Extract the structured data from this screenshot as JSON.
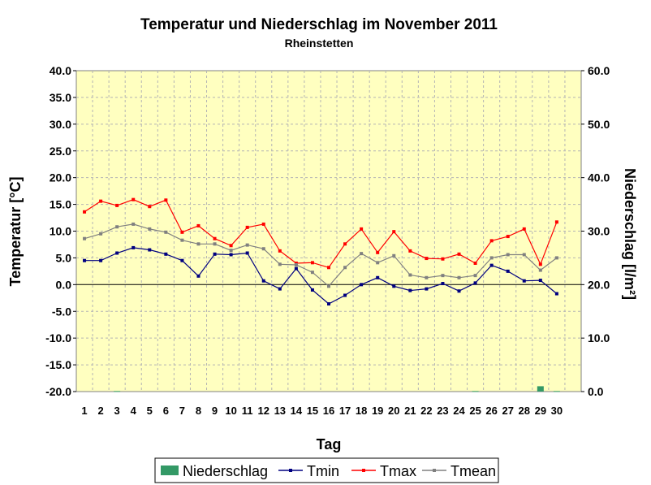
{
  "chart_data": {
    "type": "line",
    "title": "Temperatur und Niederschlag im November 2011",
    "subtitle": "Rheinstetten",
    "xlabel": "Tag",
    "ylabel": "Temperatur [°C]",
    "y2label": "Niederschlag [l/m²]",
    "x": [
      1,
      2,
      3,
      4,
      5,
      6,
      7,
      8,
      9,
      10,
      11,
      12,
      13,
      14,
      15,
      16,
      17,
      18,
      19,
      20,
      21,
      22,
      23,
      24,
      25,
      26,
      27,
      28,
      29,
      30
    ],
    "x_slots": 31,
    "ylim": [
      -20,
      40
    ],
    "yticks": [
      -20,
      -15,
      -10,
      -5,
      0,
      5,
      10,
      15,
      20,
      25,
      30,
      35,
      40
    ],
    "y2lim": [
      0,
      60
    ],
    "y2ticks": [
      0,
      10,
      20,
      30,
      40,
      50,
      60
    ],
    "grid": true,
    "plot_background": "#ffffc0",
    "legend_position": "bottom",
    "series": [
      {
        "name": "Niederschlag",
        "kind": "bar",
        "axis": "right",
        "color": "#339966",
        "values": [
          0,
          0,
          0.1,
          0,
          0,
          0,
          0,
          0,
          0,
          0,
          0,
          0,
          0,
          0,
          0,
          0,
          0,
          0,
          0,
          0,
          0,
          0,
          0,
          0,
          0.1,
          0,
          0,
          0,
          1.0,
          0.1
        ]
      },
      {
        "name": "Tmin",
        "kind": "line",
        "axis": "left",
        "color": "#000080",
        "values": [
          4.5,
          4.5,
          5.9,
          6.9,
          6.5,
          5.7,
          4.5,
          1.6,
          5.7,
          5.6,
          5.9,
          0.7,
          -0.8,
          3.0,
          -1.0,
          -3.6,
          -2.0,
          0.0,
          1.3,
          -0.3,
          -1.1,
          -0.8,
          0.2,
          -1.2,
          0.3,
          3.6,
          2.5,
          0.7,
          0.8,
          -1.7
        ]
      },
      {
        "name": "Tmax",
        "kind": "line",
        "axis": "left",
        "color": "#ff0000",
        "values": [
          13.6,
          15.6,
          14.8,
          15.9,
          14.6,
          15.8,
          9.8,
          11.0,
          8.6,
          7.3,
          10.7,
          11.3,
          6.3,
          4.0,
          4.1,
          3.2,
          7.6,
          10.4,
          6.0,
          9.9,
          6.3,
          4.9,
          4.8,
          5.7,
          4.0,
          8.2,
          9.0,
          10.4,
          3.8,
          11.7
        ]
      },
      {
        "name": "Tmean",
        "kind": "line",
        "axis": "left",
        "color": "#808080",
        "values": [
          8.6,
          9.5,
          10.8,
          11.3,
          10.4,
          9.8,
          8.3,
          7.6,
          7.6,
          6.4,
          7.4,
          6.7,
          3.8,
          3.7,
          2.3,
          -0.3,
          3.2,
          5.8,
          4.1,
          5.4,
          1.8,
          1.3,
          1.7,
          1.3,
          1.7,
          5.0,
          5.6,
          5.6,
          2.7,
          5.0
        ]
      }
    ]
  }
}
